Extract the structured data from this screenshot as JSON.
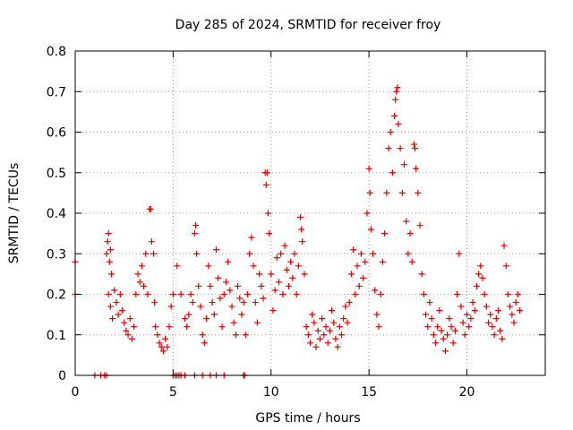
{
  "chart_data": {
    "type": "scatter",
    "title": "Day 285 of 2024, SRMTID for receiver froy",
    "xlabel": "GPS time / hours",
    "ylabel": "SRMTID / TECUs",
    "xlim": [
      0,
      24
    ],
    "ylim": [
      0,
      0.8
    ],
    "xticks": [
      0,
      5,
      10,
      15,
      20
    ],
    "yticks": [
      0,
      0.1,
      0.2,
      0.3,
      0.4,
      0.5,
      0.6,
      0.7,
      0.8
    ],
    "xtick_labels": [
      "0",
      "5",
      "10",
      "15",
      "20"
    ],
    "ytick_labels": [
      "0",
      "0.1",
      "0.2",
      "0.3",
      "0.4",
      "0.5",
      "0.6",
      "0.7",
      "0.8"
    ],
    "grid": true,
    "marker": "+",
    "color": "#e00000",
    "series": [
      {
        "name": "SRMTID",
        "points": [
          [
            0.0,
            0.28
          ],
          [
            0.0,
            0.2
          ],
          [
            1.0,
            0.0
          ],
          [
            1.3,
            0.0
          ],
          [
            1.5,
            0.0
          ],
          [
            1.6,
            0.0
          ],
          [
            1.6,
            0.3
          ],
          [
            1.65,
            0.33
          ],
          [
            1.7,
            0.35
          ],
          [
            1.75,
            0.28
          ],
          [
            1.8,
            0.31
          ],
          [
            1.85,
            0.25
          ],
          [
            1.7,
            0.2
          ],
          [
            1.8,
            0.17
          ],
          [
            1.9,
            0.14
          ],
          [
            2.0,
            0.21
          ],
          [
            2.1,
            0.18
          ],
          [
            2.2,
            0.15
          ],
          [
            2.3,
            0.2
          ],
          [
            2.4,
            0.16
          ],
          [
            2.5,
            0.13
          ],
          [
            2.6,
            0.11
          ],
          [
            2.7,
            0.1
          ],
          [
            2.8,
            0.14
          ],
          [
            2.9,
            0.09
          ],
          [
            3.0,
            0.12
          ],
          [
            3.1,
            0.2
          ],
          [
            3.2,
            0.25
          ],
          [
            3.3,
            0.23
          ],
          [
            3.4,
            0.27
          ],
          [
            3.5,
            0.22
          ],
          [
            3.6,
            0.3
          ],
          [
            3.7,
            0.2
          ],
          [
            3.8,
            0.41
          ],
          [
            3.85,
            0.41
          ],
          [
            3.9,
            0.33
          ],
          [
            4.0,
            0.3
          ],
          [
            4.05,
            0.18
          ],
          [
            4.1,
            0.12
          ],
          [
            4.2,
            0.1
          ],
          [
            4.3,
            0.08
          ],
          [
            4.4,
            0.07
          ],
          [
            4.5,
            0.06
          ],
          [
            4.6,
            0.09
          ],
          [
            4.7,
            0.07
          ],
          [
            4.8,
            0.12
          ],
          [
            4.9,
            0.17
          ],
          [
            5.0,
            0.2
          ],
          [
            5.0,
            0.0
          ],
          [
            5.1,
            0.0
          ],
          [
            5.2,
            0.0
          ],
          [
            5.3,
            0.0
          ],
          [
            5.4,
            0.0
          ],
          [
            5.6,
            0.0
          ],
          [
            6.1,
            0.0
          ],
          [
            6.5,
            0.0
          ],
          [
            6.9,
            0.0
          ],
          [
            7.2,
            0.0
          ],
          [
            7.6,
            0.0
          ],
          [
            8.6,
            0.0
          ],
          [
            8.65,
            0.0
          ],
          [
            5.2,
            0.27
          ],
          [
            5.4,
            0.2
          ],
          [
            5.6,
            0.14
          ],
          [
            5.7,
            0.12
          ],
          [
            5.8,
            0.15
          ],
          [
            5.9,
            0.2
          ],
          [
            6.0,
            0.18
          ],
          [
            6.1,
            0.35
          ],
          [
            6.15,
            0.37
          ],
          [
            6.2,
            0.3
          ],
          [
            6.3,
            0.22
          ],
          [
            6.4,
            0.17
          ],
          [
            6.5,
            0.1
          ],
          [
            6.6,
            0.08
          ],
          [
            6.7,
            0.14
          ],
          [
            6.8,
            0.27
          ],
          [
            6.9,
            0.22
          ],
          [
            7.0,
            0.18
          ],
          [
            7.1,
            0.15
          ],
          [
            7.2,
            0.31
          ],
          [
            7.3,
            0.24
          ],
          [
            7.4,
            0.19
          ],
          [
            7.5,
            0.12
          ],
          [
            7.6,
            0.2
          ],
          [
            7.7,
            0.23
          ],
          [
            7.8,
            0.28
          ],
          [
            7.9,
            0.21
          ],
          [
            8.0,
            0.17
          ],
          [
            8.1,
            0.13
          ],
          [
            8.2,
            0.1
          ],
          [
            8.3,
            0.22
          ],
          [
            8.4,
            0.19
          ],
          [
            8.5,
            0.15
          ],
          [
            8.6,
            0.18
          ],
          [
            8.7,
            0.1
          ],
          [
            8.8,
            0.2
          ],
          [
            8.9,
            0.3
          ],
          [
            9.0,
            0.34
          ],
          [
            9.1,
            0.27
          ],
          [
            9.2,
            0.18
          ],
          [
            9.3,
            0.13
          ],
          [
            9.4,
            0.25
          ],
          [
            9.5,
            0.22
          ],
          [
            9.6,
            0.19
          ],
          [
            9.7,
            0.5
          ],
          [
            9.75,
            0.47
          ],
          [
            9.8,
            0.5
          ],
          [
            9.85,
            0.4
          ],
          [
            9.9,
            0.35
          ],
          [
            10.0,
            0.25
          ],
          [
            10.1,
            0.16
          ],
          [
            10.2,
            0.21
          ],
          [
            10.3,
            0.29
          ],
          [
            10.4,
            0.23
          ],
          [
            10.5,
            0.3
          ],
          [
            10.6,
            0.2
          ],
          [
            10.7,
            0.32
          ],
          [
            10.8,
            0.26
          ],
          [
            10.9,
            0.22
          ],
          [
            11.0,
            0.28
          ],
          [
            11.1,
            0.24
          ],
          [
            11.2,
            0.3
          ],
          [
            11.3,
            0.2
          ],
          [
            11.4,
            0.27
          ],
          [
            11.5,
            0.39
          ],
          [
            11.55,
            0.36
          ],
          [
            11.6,
            0.33
          ],
          [
            11.7,
            0.25
          ],
          [
            11.8,
            0.12
          ],
          [
            11.9,
            0.1
          ],
          [
            12.0,
            0.08
          ],
          [
            12.1,
            0.15
          ],
          [
            12.2,
            0.13
          ],
          [
            12.3,
            0.07
          ],
          [
            12.4,
            0.11
          ],
          [
            12.5,
            0.09
          ],
          [
            12.6,
            0.14
          ],
          [
            12.7,
            0.1
          ],
          [
            12.8,
            0.12
          ],
          [
            12.9,
            0.08
          ],
          [
            13.0,
            0.11
          ],
          [
            13.1,
            0.16
          ],
          [
            13.2,
            0.13
          ],
          [
            13.3,
            0.09
          ],
          [
            13.4,
            0.07
          ],
          [
            13.5,
            0.12
          ],
          [
            13.6,
            0.1
          ],
          [
            13.7,
            0.14
          ],
          [
            13.8,
            0.17
          ],
          [
            13.9,
            0.13
          ],
          [
            14.0,
            0.18
          ],
          [
            14.1,
            0.25
          ],
          [
            14.2,
            0.31
          ],
          [
            14.3,
            0.2
          ],
          [
            14.4,
            0.27
          ],
          [
            14.5,
            0.22
          ],
          [
            14.6,
            0.3
          ],
          [
            14.7,
            0.24
          ],
          [
            14.8,
            0.28
          ],
          [
            14.9,
            0.4
          ],
          [
            15.0,
            0.51
          ],
          [
            15.05,
            0.45
          ],
          [
            15.1,
            0.36
          ],
          [
            15.2,
            0.3
          ],
          [
            15.3,
            0.21
          ],
          [
            15.4,
            0.15
          ],
          [
            15.5,
            0.12
          ],
          [
            15.6,
            0.2
          ],
          [
            15.7,
            0.28
          ],
          [
            15.8,
            0.35
          ],
          [
            15.9,
            0.45
          ],
          [
            16.0,
            0.56
          ],
          [
            16.1,
            0.6
          ],
          [
            16.2,
            0.5
          ],
          [
            16.3,
            0.64
          ],
          [
            16.35,
            0.68
          ],
          [
            16.4,
            0.7
          ],
          [
            16.45,
            0.71
          ],
          [
            16.5,
            0.62
          ],
          [
            16.6,
            0.56
          ],
          [
            16.7,
            0.45
          ],
          [
            16.8,
            0.52
          ],
          [
            16.9,
            0.38
          ],
          [
            17.0,
            0.3
          ],
          [
            17.1,
            0.35
          ],
          [
            17.2,
            0.28
          ],
          [
            17.3,
            0.57
          ],
          [
            17.35,
            0.56
          ],
          [
            17.4,
            0.51
          ],
          [
            17.5,
            0.45
          ],
          [
            17.6,
            0.37
          ],
          [
            17.7,
            0.25
          ],
          [
            17.8,
            0.2
          ],
          [
            17.9,
            0.15
          ],
          [
            18.0,
            0.12
          ],
          [
            18.1,
            0.18
          ],
          [
            18.2,
            0.14
          ],
          [
            18.3,
            0.1
          ],
          [
            18.4,
            0.08
          ],
          [
            18.5,
            0.12
          ],
          [
            18.6,
            0.16
          ],
          [
            18.7,
            0.11
          ],
          [
            18.8,
            0.09
          ],
          [
            18.9,
            0.06
          ],
          [
            19.0,
            0.1
          ],
          [
            19.1,
            0.14
          ],
          [
            19.2,
            0.12
          ],
          [
            19.3,
            0.08
          ],
          [
            19.4,
            0.11
          ],
          [
            19.5,
            0.2
          ],
          [
            19.6,
            0.3
          ],
          [
            19.7,
            0.17
          ],
          [
            19.8,
            0.13
          ],
          [
            19.9,
            0.1
          ],
          [
            20.0,
            0.15
          ],
          [
            20.1,
            0.12
          ],
          [
            20.2,
            0.14
          ],
          [
            20.3,
            0.18
          ],
          [
            20.4,
            0.16
          ],
          [
            20.5,
            0.22
          ],
          [
            20.6,
            0.25
          ],
          [
            20.7,
            0.27
          ],
          [
            20.8,
            0.24
          ],
          [
            20.9,
            0.2
          ],
          [
            21.0,
            0.17
          ],
          [
            21.1,
            0.13
          ],
          [
            21.2,
            0.15
          ],
          [
            21.3,
            0.12
          ],
          [
            21.4,
            0.1
          ],
          [
            21.5,
            0.14
          ],
          [
            21.6,
            0.16
          ],
          [
            21.7,
            0.11
          ],
          [
            21.8,
            0.09
          ],
          [
            21.9,
            0.32
          ],
          [
            22.0,
            0.27
          ],
          [
            22.1,
            0.2
          ],
          [
            22.2,
            0.17
          ],
          [
            22.3,
            0.15
          ],
          [
            22.4,
            0.13
          ],
          [
            22.5,
            0.18
          ],
          [
            22.6,
            0.2
          ],
          [
            22.7,
            0.16
          ]
        ]
      }
    ]
  }
}
